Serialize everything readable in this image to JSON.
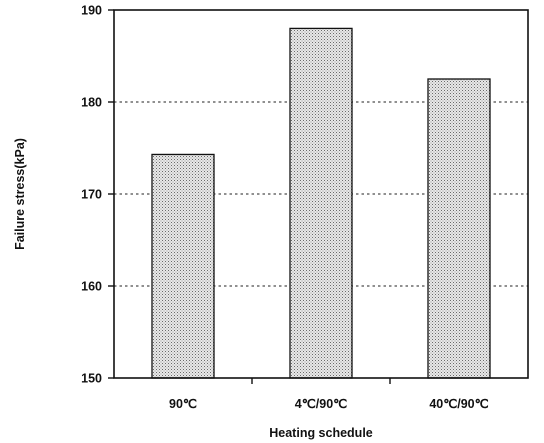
{
  "chart_data": {
    "type": "bar",
    "categories": [
      "90℃",
      "4℃/90℃",
      "40℃/90℃"
    ],
    "values": [
      174.3,
      188.0,
      182.5
    ],
    "xlabel": "Heating schedule",
    "ylabel": "Failure stress(kPa)",
    "ylim": [
      150,
      190
    ],
    "yticks": [
      150,
      160,
      170,
      180,
      190
    ],
    "grid": "horizontal dotted",
    "bar_fill": "#d9d9d9",
    "bar_pattern": "stippled"
  }
}
